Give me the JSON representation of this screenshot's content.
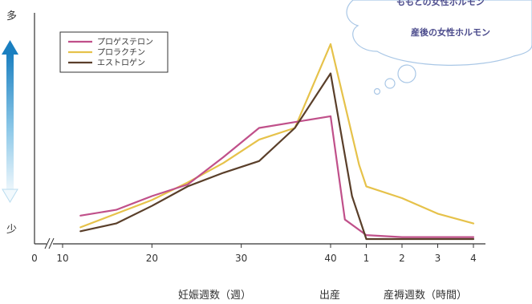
{
  "chart_data": {
    "type": "line",
    "y_axis": {
      "label_top": "多",
      "label_bottom": "少"
    },
    "x_axis": {
      "tick_labels_pregnancy": [
        "0",
        "10",
        "20",
        "30",
        "40"
      ],
      "tick_labels_postpartum": [
        "1",
        "2",
        "3",
        "4"
      ],
      "label_pregnancy": "妊娠週数（週）",
      "label_birth": "出産",
      "label_postpartum": "産褥週数（時間）"
    },
    "legend": {
      "placement": "top-left"
    },
    "series": [
      {
        "name": "プロゲステロン",
        "color": "#c0508a",
        "points": [
          [
            12,
            0.12
          ],
          [
            16,
            0.15
          ],
          [
            20,
            0.22
          ],
          [
            24,
            0.28
          ],
          [
            28,
            0.42
          ],
          [
            32,
            0.57
          ],
          [
            36,
            0.6
          ],
          [
            40,
            0.63
          ],
          [
            40.4,
            0.1
          ],
          [
            41,
            0.02
          ],
          [
            42,
            0.01
          ],
          [
            43,
            0.01
          ],
          [
            44,
            0.01
          ]
        ]
      },
      {
        "name": "プロラクチン",
        "color": "#e6c24a",
        "points": [
          [
            12,
            0.06
          ],
          [
            16,
            0.13
          ],
          [
            20,
            0.2
          ],
          [
            24,
            0.29
          ],
          [
            28,
            0.39
          ],
          [
            32,
            0.51
          ],
          [
            36,
            0.57
          ],
          [
            40,
            1.0
          ],
          [
            40.8,
            0.38
          ],
          [
            41,
            0.27
          ],
          [
            42,
            0.21
          ],
          [
            43,
            0.13
          ],
          [
            44,
            0.08
          ]
        ]
      },
      {
        "name": "エストロゲン",
        "color": "#5a3f2a",
        "points": [
          [
            12,
            0.04
          ],
          [
            16,
            0.08
          ],
          [
            20,
            0.17
          ],
          [
            24,
            0.27
          ],
          [
            28,
            0.34
          ],
          [
            32,
            0.4
          ],
          [
            36,
            0.57
          ],
          [
            40,
            0.85
          ],
          [
            40.6,
            0.22
          ],
          [
            41,
            0.0
          ],
          [
            44,
            0.0
          ]
        ]
      }
    ]
  },
  "annotation": {
    "bubble_line1": "ももとの女性ホルモン",
    "bubble_line2": "産後の女性ホルモン"
  }
}
